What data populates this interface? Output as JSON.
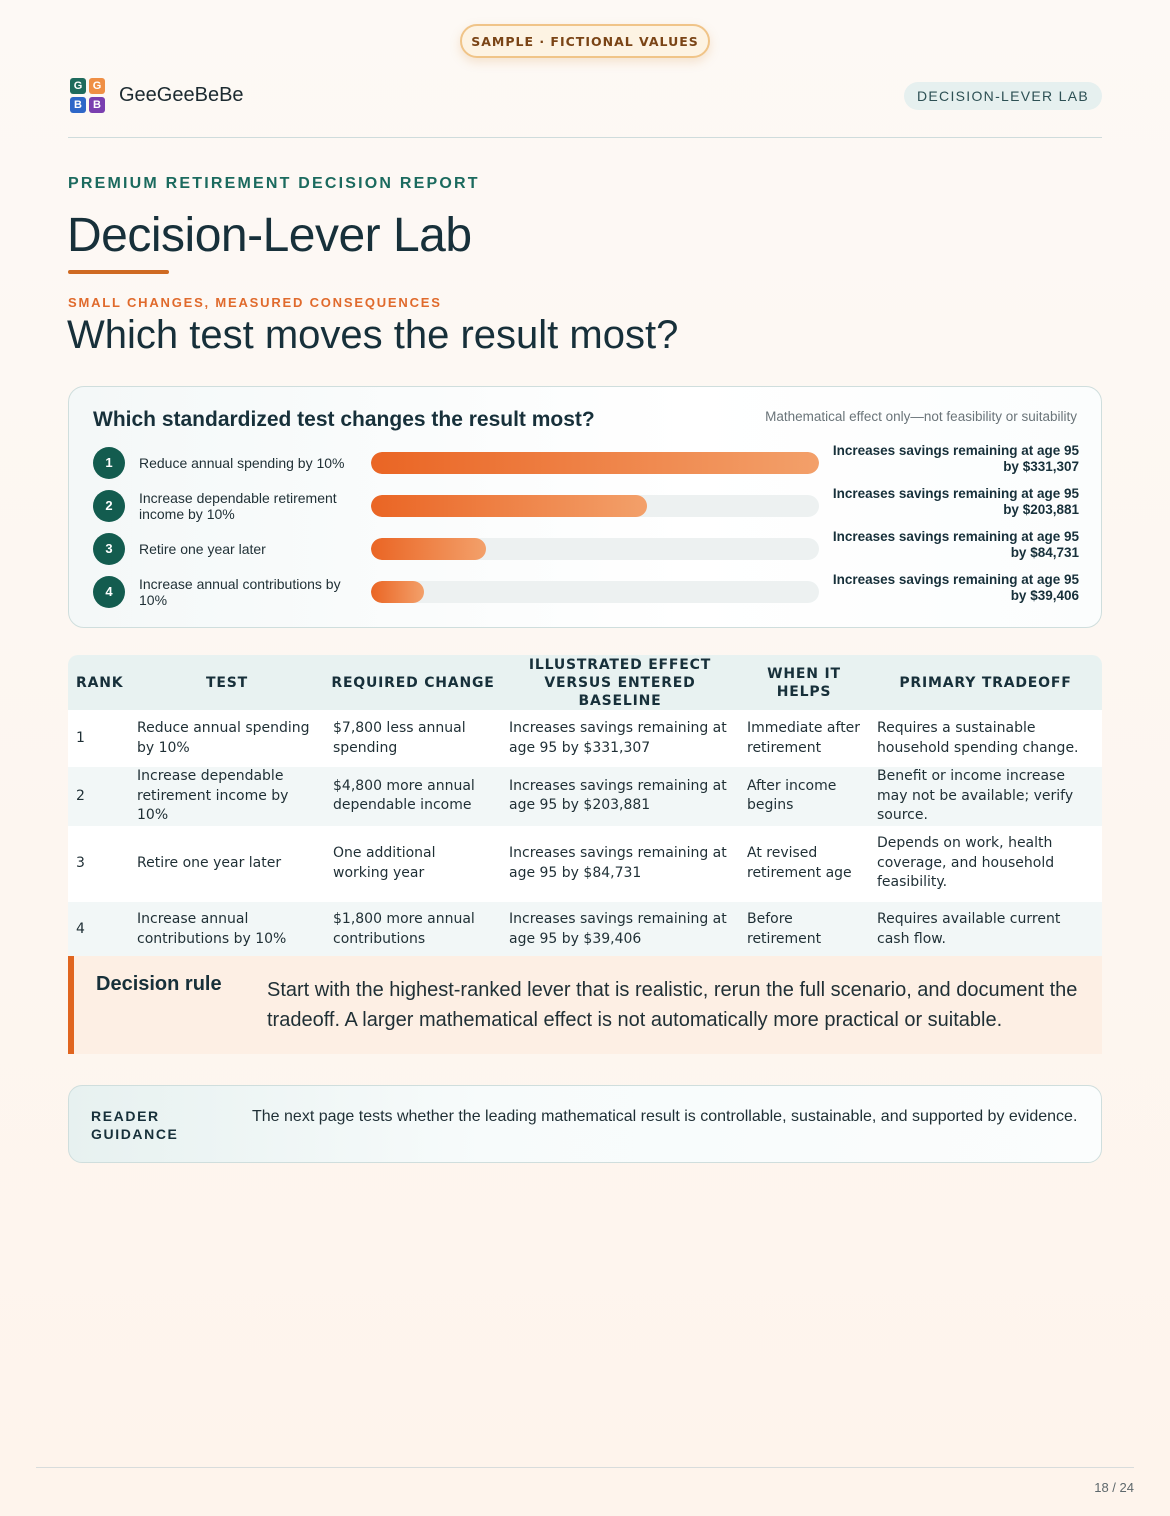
{
  "badge": "SAMPLE · FICTIONAL VALUES",
  "brand": {
    "name": "GeeGeeBeBe",
    "logo_letters": [
      "G",
      "G",
      "B",
      "B"
    ],
    "logo_colors": [
      "#1f6b5d",
      "#ef8f45",
      "#2e67c8",
      "#7a3fb0"
    ]
  },
  "header": {
    "section": "DECISION-LEVER LAB"
  },
  "report": {
    "eyebrow": "PREMIUM RETIREMENT DECISION REPORT",
    "title": "Decision-Lever Lab",
    "kicker": "SMALL CHANGES, MEASURED CONSEQUENCES",
    "subtitle": "Which test moves the result most?"
  },
  "chart_card": {
    "title": "Which standardized test changes the result most?",
    "note": "Mathematical effect only—not feasibility or suitability"
  },
  "chart_data": {
    "type": "bar",
    "orientation": "horizontal",
    "categories": [
      "Reduce annual spending by 10%",
      "Increase dependable retirement income by 10%",
      "Retire one year later",
      "Increase annual contributions by 10%"
    ],
    "ranks": [
      "1",
      "2",
      "3",
      "4"
    ],
    "values": [
      331307,
      203881,
      84731,
      39406
    ],
    "value_labels": [
      "Increases savings remaining at age 95 by $331,307",
      "Increases savings remaining at age 95 by $203,881",
      "Increases savings remaining at age 95 by $84,731",
      "Increases savings remaining at age 95 by $39,406"
    ],
    "xlim": [
      0,
      331307
    ],
    "grid": false
  },
  "table": {
    "headers": [
      "RANK",
      "TEST",
      "REQUIRED CHANGE",
      "ILLUSTRATED EFFECT VERSUS ENTERED BASELINE",
      "WHEN IT HELPS",
      "PRIMARY TRADEOFF"
    ],
    "rows": [
      [
        "1",
        "Reduce annual spending by 10%",
        "$7,800 less annual spending",
        "Increases savings remaining at age 95 by $331,307",
        "Immediate after retirement",
        "Requires a sustainable household spending change."
      ],
      [
        "2",
        "Increase dependable retirement income by 10%",
        "$4,800 more annual dependable income",
        "Increases savings remaining at age 95 by $203,881",
        "After income begins",
        "Benefit or income increase may not be available; verify source."
      ],
      [
        "3",
        "Retire one year later",
        "One additional working year",
        "Increases savings remaining at age 95 by $84,731",
        "At revised retirement age",
        "Depends on work, health coverage, and household feasibility."
      ],
      [
        "4",
        "Increase annual contributions by 10%",
        "$1,800 more annual contributions",
        "Increases savings remaining at age 95 by $39,406",
        "Before retirement",
        "Requires available current cash flow."
      ]
    ]
  },
  "decision_rule": {
    "label": "Decision rule",
    "text": "Start with the highest-ranked lever that is realistic, rerun the full scenario, and document the tradeoff. A larger mathematical effect is not automatically more practical or suitable."
  },
  "guidance": {
    "label": "READER GUIDANCE",
    "text": "The next page tests whether the leading mathematical result is controllable, sustainable, and supported by evidence."
  },
  "footer": {
    "page": "18 / 24"
  },
  "colors": {
    "accent_orange": "#e0651f",
    "accent_green": "#135c4f",
    "ink": "#17303a"
  }
}
